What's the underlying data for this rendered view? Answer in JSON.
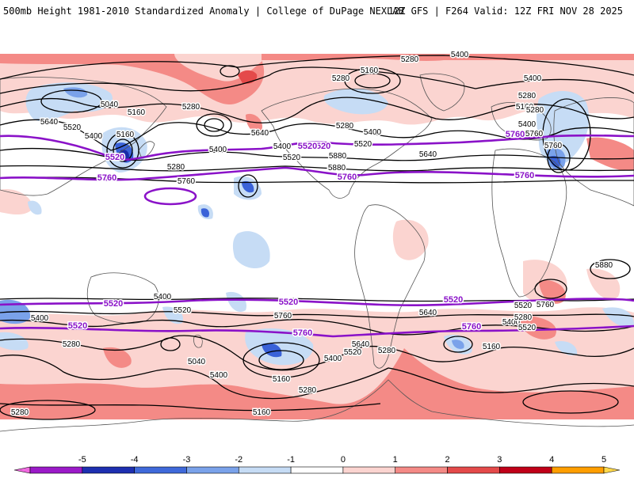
{
  "header": {
    "left": "500mb Height 1981-2010 Standardized Anomaly | College of DuPage NEXLAB",
    "right": "12Z GFS | F264 Valid: 12Z FRI NOV 28 2025"
  },
  "map": {
    "colors": {
      "ocean_background": "#ffffff",
      "pos1": "#fbd4d0",
      "pos2": "#f48a86",
      "pos3": "#e44a4a",
      "neg1": "#c6dcf5",
      "neg2": "#7aa2ea",
      "neg3": "#3a62d8",
      "neg4": "#1a2aa8",
      "contour_black": "#000000",
      "contour_purple": "#8a12c8",
      "coastline": "#555555"
    },
    "contour_labels": {
      "black": [
        "5400",
        "5280",
        "5160",
        "5280",
        "5400",
        "5040",
        "5160",
        "5280",
        "5400",
        "5640",
        "5160",
        "5520",
        "5400",
        "5280",
        "5400",
        "5520",
        "5280",
        "5160",
        "5280",
        "5400",
        "5760",
        "5640",
        "5400",
        "5520",
        "5760",
        "5640",
        "5880",
        "5280",
        "5880",
        "5760",
        "5880",
        "5760",
        "5400",
        "5520",
        "5640",
        "5760",
        "5520",
        "5400",
        "5280",
        "5520",
        "5400",
        "5280",
        "5640",
        "5520",
        "5400",
        "5280",
        "5160",
        "5040",
        "5400",
        "5160",
        "5280",
        "5160",
        "5280"
      ],
      "purple": [
        "5520",
        "5520",
        "5760",
        "5760",
        "5520",
        "5760",
        "5760",
        "5520",
        "5760",
        "5760",
        "5520",
        "5520",
        "5520"
      ]
    }
  },
  "colorbar": {
    "ticks": [
      "-5",
      "-4",
      "-3",
      "-2",
      "-1",
      "0",
      "1",
      "2",
      "3",
      "4",
      "5"
    ],
    "colors": [
      "#f06ae0",
      "#9b1ac8",
      "#1d2fb0",
      "#3f69da",
      "#7aa2ea",
      "#c6dcf5",
      "#ffffff",
      "#fbd4d0",
      "#f48a86",
      "#e44a4a",
      "#c00018",
      "#ff9e00",
      "#ffd84a"
    ]
  }
}
